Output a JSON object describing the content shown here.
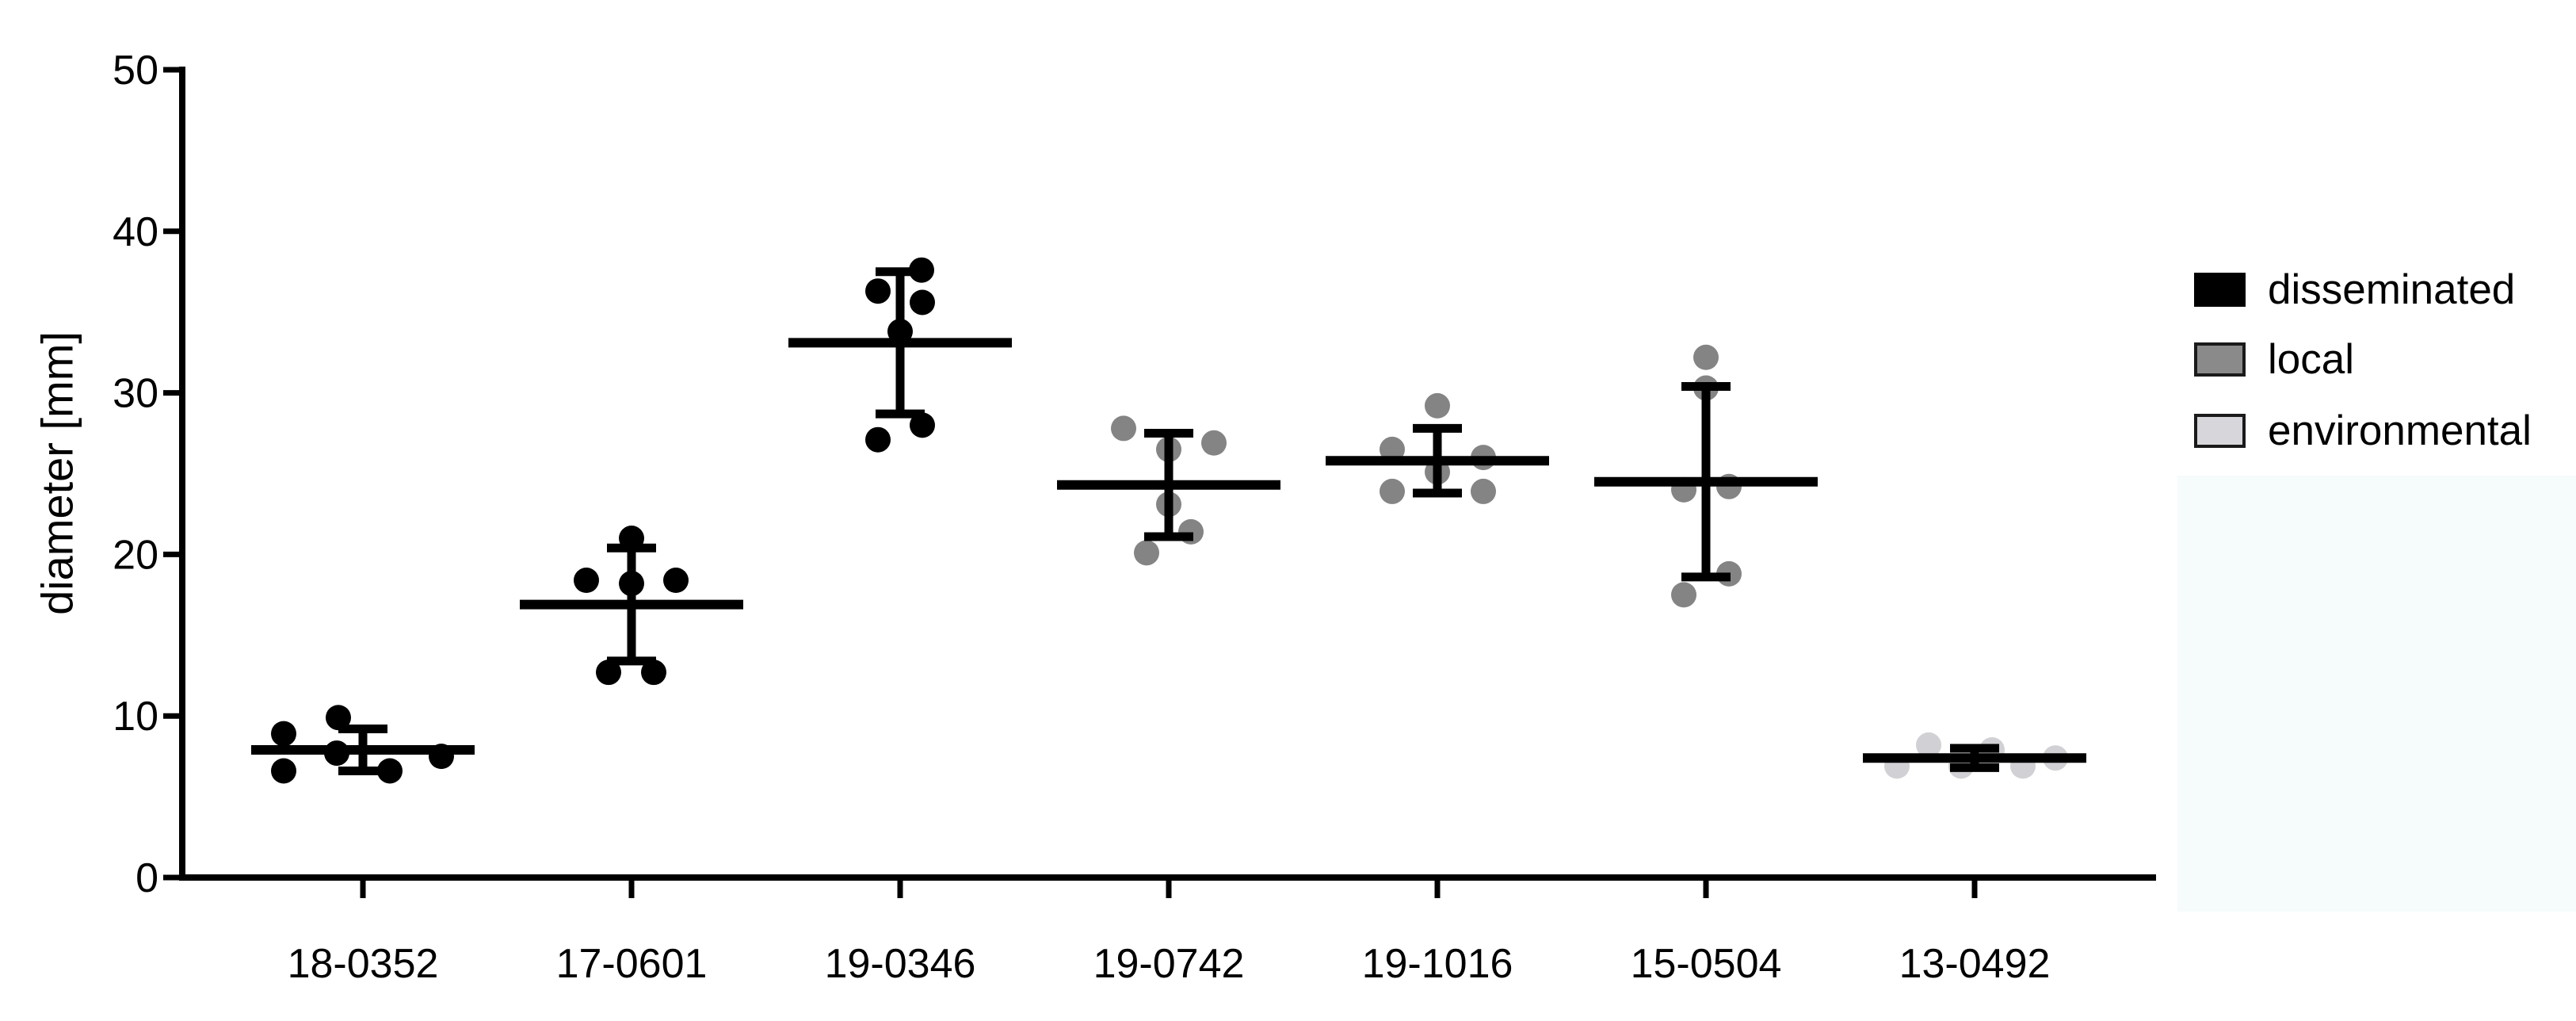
{
  "figure": {
    "background": "#ffffff",
    "highlight_region_color": "#f6fbfc"
  },
  "chart_data": {
    "type": "scatter",
    "title": "",
    "xlabel": "",
    "ylabel": "diameter [mm]",
    "ylim": [
      0,
      50
    ],
    "yticks": [
      0,
      10,
      20,
      30,
      40,
      50
    ],
    "grid": false,
    "legend_position": "right",
    "error_bar_style": "mean line with SD whiskers, black",
    "categories": [
      "18-0352",
      "17-0601",
      "19-0346",
      "19-0742",
      "19-1016",
      "15-0504",
      "13-0492"
    ],
    "legend": [
      {
        "label": "disseminated",
        "color": "#000000",
        "border": "#000000"
      },
      {
        "label": "local",
        "color": "#8a8a8a",
        "border": "#1a1a1a"
      },
      {
        "label": "environmental",
        "color": "#d7d7db",
        "border": "#1a1a1a"
      }
    ],
    "groups": [
      {
        "category": "18-0352",
        "series": "disseminated",
        "color": "#000000",
        "mean": 7.9,
        "sd": 1.3,
        "points": [
          {
            "y": 8.9,
            "dx": -100
          },
          {
            "y": 9.9,
            "dx": -31
          },
          {
            "y": 7.7,
            "dx": -33
          },
          {
            "y": 6.6,
            "dx": -100
          },
          {
            "y": 6.6,
            "dx": 34
          },
          {
            "y": 7.5,
            "dx": 99
          }
        ]
      },
      {
        "category": "17-0601",
        "series": "disseminated",
        "color": "#000000",
        "mean": 16.9,
        "sd": 3.5,
        "points": [
          {
            "y": 21.0,
            "dx": 0
          },
          {
            "y": 18.4,
            "dx": -57
          },
          {
            "y": 18.2,
            "dx": 0
          },
          {
            "y": 18.4,
            "dx": 56
          },
          {
            "y": 12.7,
            "dx": -29
          },
          {
            "y": 12.7,
            "dx": 28
          }
        ]
      },
      {
        "category": "19-0346",
        "series": "disseminated",
        "color": "#000000",
        "mean": 33.1,
        "sd": 4.4,
        "points": [
          {
            "y": 37.6,
            "dx": 27
          },
          {
            "y": 36.3,
            "dx": -28
          },
          {
            "y": 35.6,
            "dx": 28
          },
          {
            "y": 33.8,
            "dx": 0
          },
          {
            "y": 28.0,
            "dx": 28
          },
          {
            "y": 27.1,
            "dx": -28
          }
        ]
      },
      {
        "category": "19-0742",
        "series": "local",
        "color": "#848484",
        "mean": 24.3,
        "sd": 3.2,
        "points": [
          {
            "y": 27.8,
            "dx": -57
          },
          {
            "y": 26.5,
            "dx": 0
          },
          {
            "y": 26.9,
            "dx": 57
          },
          {
            "y": 23.1,
            "dx": 0
          },
          {
            "y": 21.4,
            "dx": 28
          },
          {
            "y": 20.1,
            "dx": -28
          }
        ]
      },
      {
        "category": "19-1016",
        "series": "local",
        "color": "#848484",
        "mean": 25.8,
        "sd": 2.0,
        "points": [
          {
            "y": 29.2,
            "dx": 0
          },
          {
            "y": 26.5,
            "dx": -57
          },
          {
            "y": 26.0,
            "dx": 58
          },
          {
            "y": 25.1,
            "dx": 0
          },
          {
            "y": 23.9,
            "dx": -57
          },
          {
            "y": 23.9,
            "dx": 58
          }
        ]
      },
      {
        "category": "15-0504",
        "series": "local",
        "color": "#848484",
        "mean": 24.5,
        "sd": 5.9,
        "points": [
          {
            "y": 32.2,
            "dx": 0
          },
          {
            "y": 30.3,
            "dx": 0
          },
          {
            "y": 24.0,
            "dx": -28
          },
          {
            "y": 24.2,
            "dx": 29
          },
          {
            "y": 18.8,
            "dx": 29
          },
          {
            "y": 17.5,
            "dx": -28
          }
        ]
      },
      {
        "category": "13-0492",
        "series": "environmental",
        "color": "#d1d1d5",
        "mean": 7.4,
        "sd": 0.6,
        "points": [
          {
            "y": 6.9,
            "dx": -98
          },
          {
            "y": 8.2,
            "dx": -58
          },
          {
            "y": 6.9,
            "dx": -17
          },
          {
            "y": 7.9,
            "dx": 22
          },
          {
            "y": 6.9,
            "dx": 61
          },
          {
            "y": 7.4,
            "dx": 102
          }
        ]
      }
    ]
  }
}
